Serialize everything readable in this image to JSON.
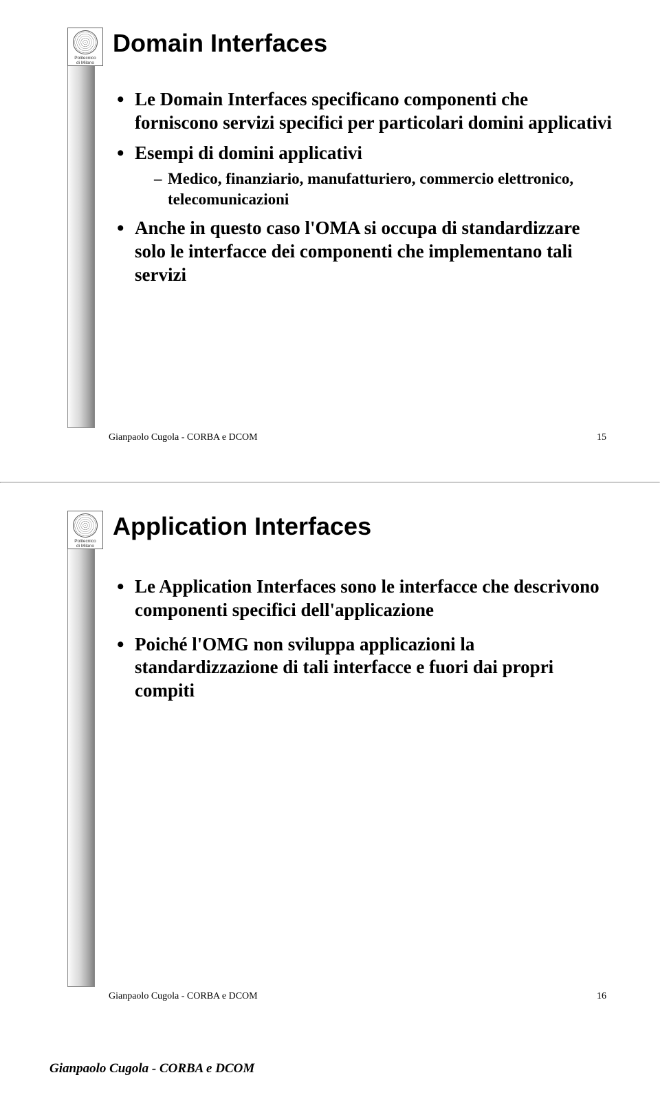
{
  "logo": {
    "line1": "Politecnico",
    "line2": "di Milano"
  },
  "slide1": {
    "title": "Domain Interfaces",
    "b1": "Le Domain Interfaces specificano componenti che forniscono servizi specifici per particolari domini applicativi",
    "b2": "Esempi di domini applicativi",
    "b2_sub1": "Medico, finanziario, manufatturiero, commercio elettronico, telecomunicazioni",
    "b3": "Anche in questo caso l'OMA si occupa di standardizzare solo le interfacce dei componenti che implementano tali servizi",
    "footer_text": "Gianpaolo Cugola - CORBA e DCOM",
    "footer_num": "15"
  },
  "slide2": {
    "title": "Application Interfaces",
    "b1": "Le Application Interfaces sono le interfacce che descrivono componenti specifici dell'applicazione",
    "b2": "Poiché l'OMG non sviluppa applicazioni la standardizzazione di tali interfacce e fuori dai propri compiti",
    "footer_text": "Gianpaolo Cugola - CORBA e DCOM",
    "footer_num": "16"
  },
  "page_footer": "Gianpaolo Cugola - CORBA e DCOM"
}
